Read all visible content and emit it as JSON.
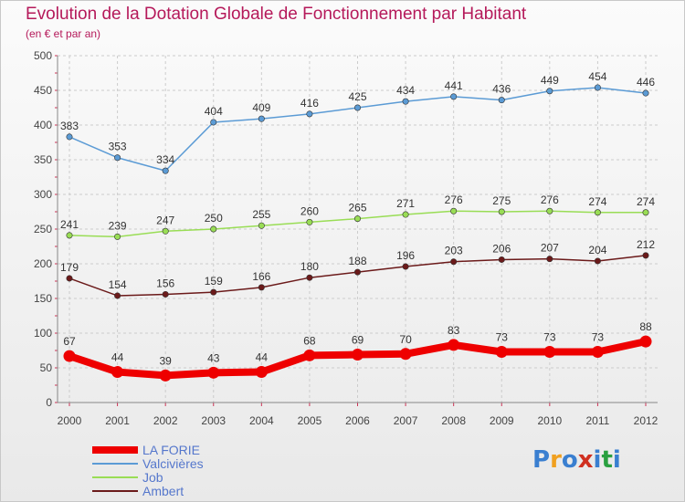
{
  "header": {
    "title": "Evolution de la Dotation Globale de Fonctionnement par Habitant",
    "subtitle": "(en € et par an)"
  },
  "logo": {
    "text": "Proxiti",
    "colors": [
      "#3a7fd0",
      "#f0a020",
      "#3a7fd0",
      "#d03020",
      "#3a7fd0",
      "#2aa040",
      "#3a7fd0"
    ]
  },
  "chart_data": {
    "type": "line",
    "title": "Evolution de la Dotation Globale de Fonctionnement par Habitant",
    "subtitle": "(en € et par an)",
    "x": [
      "2000",
      "2001",
      "2002",
      "2003",
      "2004",
      "2005",
      "2006",
      "2007",
      "2008",
      "2009",
      "2010",
      "2011",
      "2012"
    ],
    "ylim": [
      0,
      500
    ],
    "yticks": [
      0,
      50,
      100,
      150,
      200,
      250,
      300,
      350,
      400,
      450,
      500
    ],
    "grid": true,
    "legend": "bottom-left",
    "series": [
      {
        "name": "LA FORIE",
        "color": "#ee0000",
        "emphasis": true,
        "values": [
          67,
          44,
          39,
          43,
          44,
          68,
          69,
          70,
          83,
          73,
          73,
          73,
          88
        ]
      },
      {
        "name": "Valcivières",
        "color": "#5b9bd5",
        "values": [
          383,
          353,
          334,
          404,
          409,
          416,
          425,
          434,
          441,
          436,
          449,
          454,
          446
        ]
      },
      {
        "name": "Job",
        "color": "#99dd55",
        "values": [
          241,
          239,
          247,
          250,
          255,
          260,
          265,
          271,
          276,
          275,
          276,
          274,
          274
        ]
      },
      {
        "name": "Ambert",
        "color": "#6b1a1a",
        "values": [
          179,
          154,
          156,
          159,
          166,
          180,
          188,
          196,
          203,
          206,
          207,
          204,
          212
        ]
      }
    ]
  }
}
